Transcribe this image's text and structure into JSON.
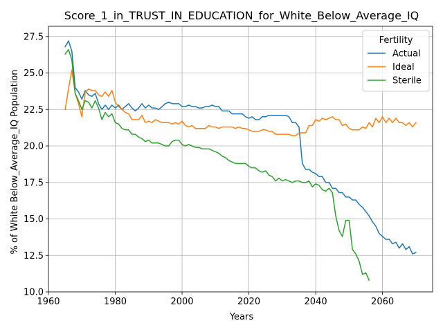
{
  "chart_data": {
    "type": "line",
    "title": "Score_1_in_TRUST_IN_EDUCATION_for_White_Below_Average_IQ",
    "xlabel": "Years",
    "ylabel": "% of White Below_Average_IQ Population",
    "xlim": [
      1960,
      2075
    ],
    "ylim": [
      10.0,
      28.2
    ],
    "xticks": [
      1960,
      1980,
      2000,
      2020,
      2040,
      2060
    ],
    "xtick_labels": [
      "1960",
      "1980",
      "2000",
      "2020",
      "2040",
      "2060"
    ],
    "yticks": [
      10.0,
      12.5,
      15.0,
      17.5,
      20.0,
      22.5,
      25.0,
      27.5
    ],
    "ytick_labels": [
      "10.0",
      "12.5",
      "15.0",
      "17.5",
      "20.0",
      "22.5",
      "25.0",
      "27.5"
    ],
    "grid": true,
    "legend": {
      "title": "Fertility",
      "placement": "upper right"
    },
    "series": [
      {
        "name": "Actual",
        "color": "#1f77b4",
        "x": [
          1965,
          1966,
          1967,
          1968,
          1969,
          1970,
          1971,
          1972,
          1973,
          1974,
          1975,
          1976,
          1977,
          1978,
          1979,
          1980,
          1981,
          1982,
          1983,
          1984,
          1985,
          1986,
          1987,
          1988,
          1989,
          1990,
          1991,
          1992,
          1993,
          1994,
          1995,
          1996,
          1997,
          1998,
          1999,
          2000,
          2001,
          2002,
          2003,
          2004,
          2005,
          2006,
          2007,
          2008,
          2009,
          2010,
          2011,
          2012,
          2013,
          2014,
          2015,
          2016,
          2017,
          2018,
          2019,
          2020,
          2021,
          2022,
          2023,
          2024,
          2025,
          2026,
          2027,
          2028,
          2029,
          2030,
          2031,
          2032,
          2033,
          2034,
          2035,
          2036,
          2037,
          2038,
          2039,
          2040,
          2041,
          2042,
          2043,
          2044,
          2045,
          2046,
          2047,
          2048,
          2049,
          2050,
          2051,
          2052,
          2053,
          2054,
          2055,
          2056,
          2057,
          2058,
          2059,
          2060,
          2061,
          2062,
          2063,
          2064,
          2065,
          2066,
          2067,
          2068,
          2069,
          2070
        ],
        "y": [
          26.8,
          27.2,
          26.5,
          24.0,
          23.7,
          23.2,
          23.8,
          23.5,
          23.4,
          23.6,
          22.9,
          22.5,
          22.8,
          22.5,
          22.8,
          22.6,
          22.8,
          22.5,
          22.7,
          22.9,
          22.6,
          22.4,
          22.6,
          22.9,
          22.6,
          22.8,
          22.6,
          22.6,
          22.5,
          22.7,
          22.9,
          23.0,
          22.9,
          22.9,
          22.9,
          22.7,
          22.7,
          22.8,
          22.7,
          22.7,
          22.6,
          22.6,
          22.7,
          22.7,
          22.8,
          22.7,
          22.7,
          22.4,
          22.4,
          22.4,
          22.2,
          22.2,
          22.2,
          22.2,
          22.0,
          21.9,
          22.0,
          21.8,
          21.8,
          22.0,
          22.0,
          22.1,
          22.1,
          22.1,
          22.1,
          22.1,
          22.1,
          22.0,
          21.6,
          21.6,
          21.3,
          18.8,
          18.4,
          18.4,
          18.2,
          18.1,
          17.9,
          17.9,
          17.5,
          17.5,
          17.1,
          17.1,
          16.8,
          16.8,
          16.5,
          16.5,
          16.3,
          16.3,
          16.0,
          15.8,
          15.5,
          15.2,
          14.8,
          14.5,
          14.0,
          13.8,
          13.6,
          13.6,
          13.3,
          13.4,
          13.0,
          13.3,
          12.9,
          13.1,
          12.6,
          12.7
        ]
      },
      {
        "name": "Ideal",
        "color": "#ff7f0e",
        "x": [
          1965,
          1966,
          1967,
          1968,
          1969,
          1970,
          1971,
          1972,
          1973,
          1974,
          1975,
          1976,
          1977,
          1978,
          1979,
          1980,
          1981,
          1982,
          1983,
          1984,
          1985,
          1986,
          1987,
          1988,
          1989,
          1990,
          1991,
          1992,
          1993,
          1994,
          1995,
          1996,
          1997,
          1998,
          1999,
          2000,
          2001,
          2002,
          2003,
          2004,
          2005,
          2006,
          2007,
          2008,
          2009,
          2010,
          2011,
          2012,
          2013,
          2014,
          2015,
          2016,
          2017,
          2018,
          2019,
          2020,
          2021,
          2022,
          2023,
          2024,
          2025,
          2026,
          2027,
          2028,
          2029,
          2030,
          2031,
          2032,
          2033,
          2034,
          2035,
          2036,
          2037,
          2038,
          2039,
          2040,
          2041,
          2042,
          2043,
          2044,
          2045,
          2046,
          2047,
          2048,
          2049,
          2050,
          2051,
          2052,
          2053,
          2054,
          2055,
          2056,
          2057,
          2058,
          2059,
          2060,
          2061,
          2062,
          2063,
          2064,
          2065,
          2066,
          2067,
          2068,
          2069,
          2070
        ],
        "y": [
          22.5,
          23.9,
          25.2,
          23.6,
          22.9,
          22.0,
          23.7,
          23.9,
          23.8,
          23.8,
          23.5,
          23.4,
          23.7,
          23.4,
          23.8,
          23.0,
          22.7,
          22.5,
          22.3,
          22.2,
          21.8,
          21.8,
          21.8,
          22.1,
          21.6,
          21.7,
          21.6,
          21.8,
          21.7,
          21.6,
          21.6,
          21.6,
          21.5,
          21.6,
          21.5,
          21.7,
          21.4,
          21.3,
          21.4,
          21.2,
          21.2,
          21.2,
          21.2,
          21.4,
          21.3,
          21.3,
          21.2,
          21.3,
          21.3,
          21.3,
          21.3,
          21.2,
          21.3,
          21.2,
          21.2,
          21.1,
          21.0,
          21.0,
          21.0,
          21.1,
          21.1,
          21.0,
          21.0,
          20.8,
          20.8,
          20.8,
          20.8,
          20.8,
          20.7,
          20.7,
          20.9,
          20.9,
          20.9,
          21.4,
          21.4,
          21.8,
          21.7,
          21.9,
          21.8,
          21.9,
          22.0,
          21.8,
          21.8,
          21.4,
          21.5,
          21.2,
          21.1,
          21.1,
          21.1,
          21.3,
          21.2,
          21.6,
          21.3,
          21.9,
          21.6,
          22.0,
          21.6,
          21.9,
          21.6,
          21.9,
          21.6,
          21.6,
          21.4,
          21.6,
          21.3,
          21.6
        ]
      },
      {
        "name": "Sterile",
        "color": "#2ca02c",
        "x": [
          1965,
          1966,
          1967,
          1968,
          1969,
          1970,
          1971,
          1972,
          1973,
          1974,
          1975,
          1976,
          1977,
          1978,
          1979,
          1980,
          1981,
          1982,
          1983,
          1984,
          1985,
          1986,
          1987,
          1988,
          1989,
          1990,
          1991,
          1992,
          1993,
          1994,
          1995,
          1996,
          1997,
          1998,
          1999,
          2000,
          2001,
          2002,
          2003,
          2004,
          2005,
          2006,
          2007,
          2008,
          2009,
          2010,
          2011,
          2012,
          2013,
          2014,
          2015,
          2016,
          2017,
          2018,
          2019,
          2020,
          2021,
          2022,
          2023,
          2024,
          2025,
          2026,
          2027,
          2028,
          2029,
          2030,
          2031,
          2032,
          2033,
          2034,
          2035,
          2036,
          2037,
          2038,
          2039,
          2040,
          2041,
          2042,
          2043,
          2044,
          2045,
          2046,
          2047,
          2048,
          2049,
          2050,
          2051,
          2052,
          2053,
          2054,
          2055,
          2056
        ],
        "y": [
          26.3,
          26.6,
          25.9,
          23.6,
          23.1,
          22.5,
          23.1,
          23.0,
          22.6,
          23.1,
          22.6,
          21.8,
          22.3,
          22.0,
          22.2,
          21.6,
          21.5,
          21.2,
          21.1,
          21.1,
          20.8,
          20.8,
          20.6,
          20.5,
          20.3,
          20.4,
          20.2,
          20.2,
          20.2,
          20.1,
          20.0,
          20.0,
          20.3,
          20.4,
          20.4,
          20.1,
          20.0,
          20.1,
          20.0,
          19.9,
          19.9,
          19.8,
          19.8,
          19.8,
          19.7,
          19.6,
          19.5,
          19.3,
          19.2,
          19.0,
          18.9,
          18.8,
          18.8,
          18.8,
          18.8,
          18.6,
          18.5,
          18.5,
          18.3,
          18.2,
          18.3,
          18.0,
          17.9,
          17.6,
          17.8,
          17.6,
          17.7,
          17.6,
          17.5,
          17.6,
          17.6,
          17.5,
          17.5,
          17.6,
          17.2,
          17.4,
          17.3,
          17.0,
          16.9,
          17.1,
          16.8,
          15.2,
          14.2,
          13.8,
          14.9,
          14.9,
          12.9,
          12.6,
          12.1,
          11.2,
          11.3,
          10.8
        ]
      }
    ]
  }
}
